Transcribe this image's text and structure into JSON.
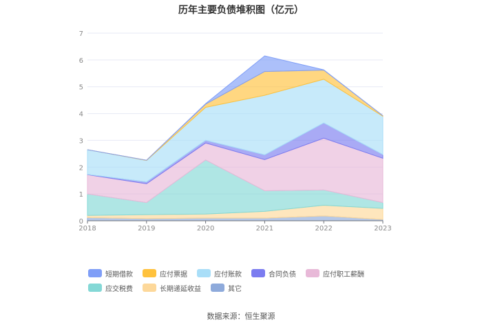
{
  "chart_data": {
    "type": "area",
    "stacked": true,
    "title": "历年主要负债堆积图（亿元）",
    "categories": [
      "2018",
      "2019",
      "2020",
      "2021",
      "2022",
      "2023"
    ],
    "ylim": [
      0,
      7
    ],
    "yticks": [
      0,
      1,
      2,
      3,
      4,
      5,
      6,
      7
    ],
    "grid": true,
    "legend_position": "bottom",
    "series": [
      {
        "name": "其它",
        "color": "#8eaadb",
        "values": [
          0.12,
          0.08,
          0.1,
          0.1,
          0.18,
          0.05
        ]
      },
      {
        "name": "长期递延收益",
        "color": "#fdd89a",
        "values": [
          0.08,
          0.15,
          0.15,
          0.25,
          0.4,
          0.41
        ]
      },
      {
        "name": "应交税费",
        "color": "#84d8d6",
        "values": [
          0.8,
          0.45,
          2.02,
          0.77,
          0.57,
          0.22
        ]
      },
      {
        "name": "应付职工薪酬",
        "color": "#e8b9d8",
        "values": [
          0.72,
          0.7,
          0.63,
          1.16,
          1.93,
          1.65
        ]
      },
      {
        "name": "合同负债",
        "color": "#7b7cf0",
        "values": [
          0.01,
          0.07,
          0.1,
          0.18,
          0.57,
          0.14
        ]
      },
      {
        "name": "应付账款",
        "color": "#a9def8",
        "values": [
          0.92,
          0.8,
          1.23,
          2.22,
          1.63,
          1.43
        ]
      },
      {
        "name": "应付票据",
        "color": "#ffc23d",
        "values": [
          0.0,
          0.01,
          0.12,
          0.89,
          0.34,
          0.02
        ]
      },
      {
        "name": "短期借款",
        "color": "#7f9ef7",
        "values": [
          0.0,
          0.0,
          0.02,
          0.58,
          0.01,
          0.0
        ]
      }
    ],
    "legend_order": [
      "短期借款",
      "应付票据",
      "应付账款",
      "合同负债",
      "应付职工薪酬",
      "应交税费",
      "长期递延收益",
      "其它"
    ]
  },
  "source": "数据来源：恒生聚源"
}
